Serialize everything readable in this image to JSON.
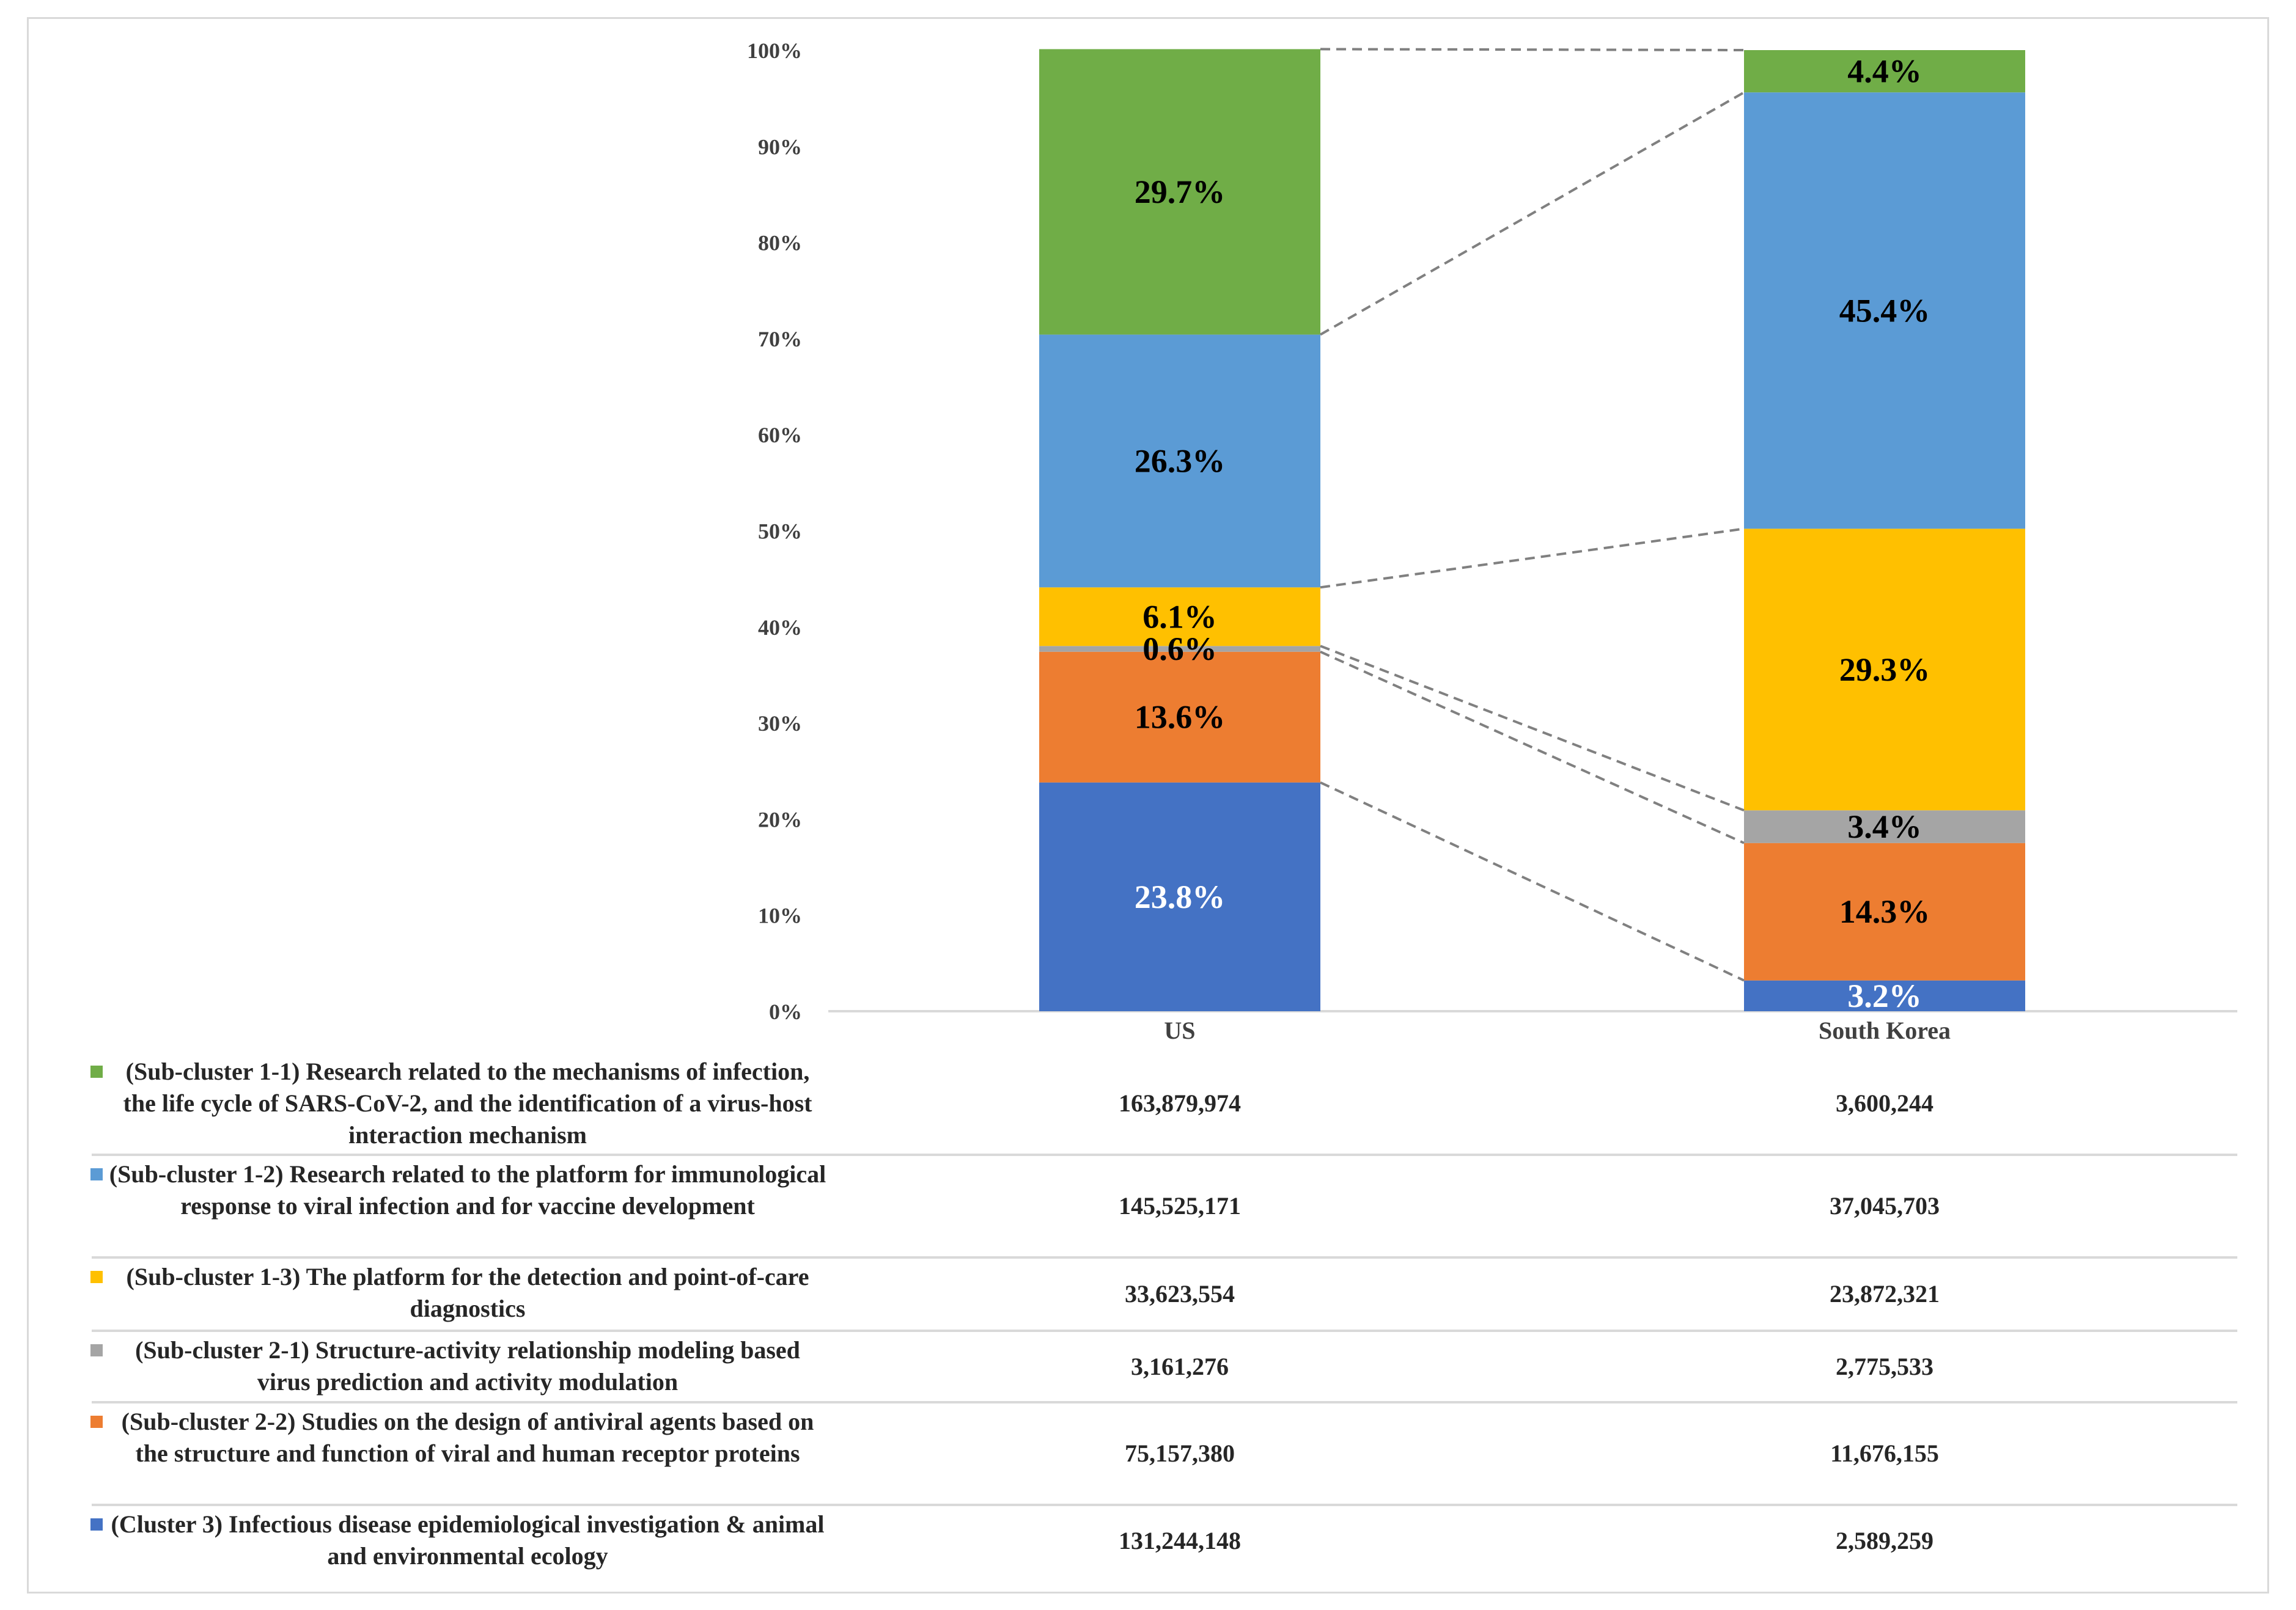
{
  "chart_data": {
    "type": "bar",
    "stacked": true,
    "percent": true,
    "categories": [
      "US",
      "South Korea"
    ],
    "ylim": [
      0,
      100
    ],
    "y_ticks": [
      "0%",
      "10%",
      "20%",
      "30%",
      "40%",
      "50%",
      "60%",
      "70%",
      "80%",
      "90%",
      "100%"
    ],
    "grid": false,
    "legend": "bottom data table",
    "series": [
      {
        "name": "(Cluster 3) Infectious disease epidemiological investigation & animal and environmental ecology",
        "color": "#4472c4",
        "values": [
          23.8,
          3.2
        ],
        "labels": [
          "23.8%",
          "3.2%"
        ],
        "label_color": "#ffffff",
        "table_values": [
          "131,244,148",
          "2,589,259"
        ]
      },
      {
        "name": "(Sub-cluster 2-2) Studies on the design of antiviral agents based on the structure and function of viral and human receptor proteins",
        "color": "#ed7d31",
        "values": [
          13.6,
          14.3
        ],
        "labels": [
          "13.6%",
          "14.3%"
        ],
        "label_color": "#000000",
        "table_values": [
          "75,157,380",
          "11,676,155"
        ]
      },
      {
        "name": "(Sub-cluster 2-1) Structure-activity relationship modeling based virus prediction and activity modulation",
        "color": "#a5a5a5",
        "values": [
          0.6,
          3.4
        ],
        "labels": [
          "0.6%",
          "3.4%"
        ],
        "label_color": "#000000",
        "table_values": [
          "3,161,276",
          "2,775,533"
        ]
      },
      {
        "name": "(Sub-cluster 1-3) The platform for the detection and point-of-care diagnostics",
        "color": "#ffc000",
        "values": [
          6.1,
          29.3
        ],
        "labels": [
          "6.1%",
          "29.3%"
        ],
        "label_color": "#000000",
        "table_values": [
          "33,623,554",
          "23,872,321"
        ]
      },
      {
        "name": "(Sub-cluster 1-2) Research related to the platform for immunological response to viral infection and for vaccine development",
        "color": "#5b9bd5",
        "values": [
          26.3,
          45.4
        ],
        "labels": [
          "26.3%",
          "45.4%"
        ],
        "label_color": "#000000",
        "table_values": [
          "145,525,171",
          "37,045,703"
        ]
      },
      {
        "name": "(Sub-cluster 1-1) Research related to the mechanisms of infection, the life cycle of SARS-CoV-2, and the identification of a virus-host interaction mechanism",
        "color": "#70ad47",
        "values": [
          29.7,
          4.4
        ],
        "labels": [
          "29.7%",
          "4.4%"
        ],
        "label_color": "#000000",
        "table_values": [
          "163,879,974",
          "3,600,244"
        ]
      }
    ]
  }
}
